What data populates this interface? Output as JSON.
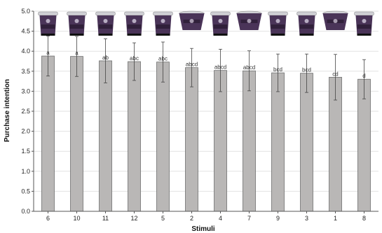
{
  "chart_data": {
    "type": "bar",
    "title": "",
    "xlabel": "Stimuli",
    "ylabel": "Purchase intention",
    "ylim": [
      0,
      5
    ],
    "y_ticks": [
      "0.0",
      "0.5",
      "1.0",
      "1.5",
      "2.0",
      "2.5",
      "3.0",
      "3.5",
      "4.0",
      "4.5",
      "5.0"
    ],
    "grid": true,
    "categories": [
      "6",
      "10",
      "11",
      "12",
      "5",
      "2",
      "4",
      "7",
      "9",
      "3",
      "1",
      "8"
    ],
    "values": [
      3.88,
      3.87,
      3.76,
      3.74,
      3.73,
      3.59,
      3.52,
      3.51,
      3.46,
      3.45,
      3.35,
      3.3
    ],
    "error": [
      0.5,
      0.5,
      0.55,
      0.47,
      0.5,
      0.48,
      0.53,
      0.5,
      0.47,
      0.48,
      0.57,
      0.49
    ],
    "significance_letters": [
      "a",
      "a",
      "ab",
      "abc",
      "abc",
      "abcd",
      "abcd",
      "abcd",
      "bcd",
      "bcd",
      "cd",
      "d"
    ],
    "package_images": [
      "tall",
      "tall",
      "tall",
      "tall",
      "tall",
      "wide",
      "tall",
      "wide",
      "tall",
      "tall",
      "wide",
      "tall"
    ],
    "colors": {
      "bar_fill": "#b9b7b6",
      "bar_stroke": "#6f6f6f",
      "grid": "#e2e2e2",
      "axis": "#555555",
      "package_dark": "#4a3458",
      "package_band": "#2b1d35",
      "package_lid": "#cfcfd4"
    }
  }
}
